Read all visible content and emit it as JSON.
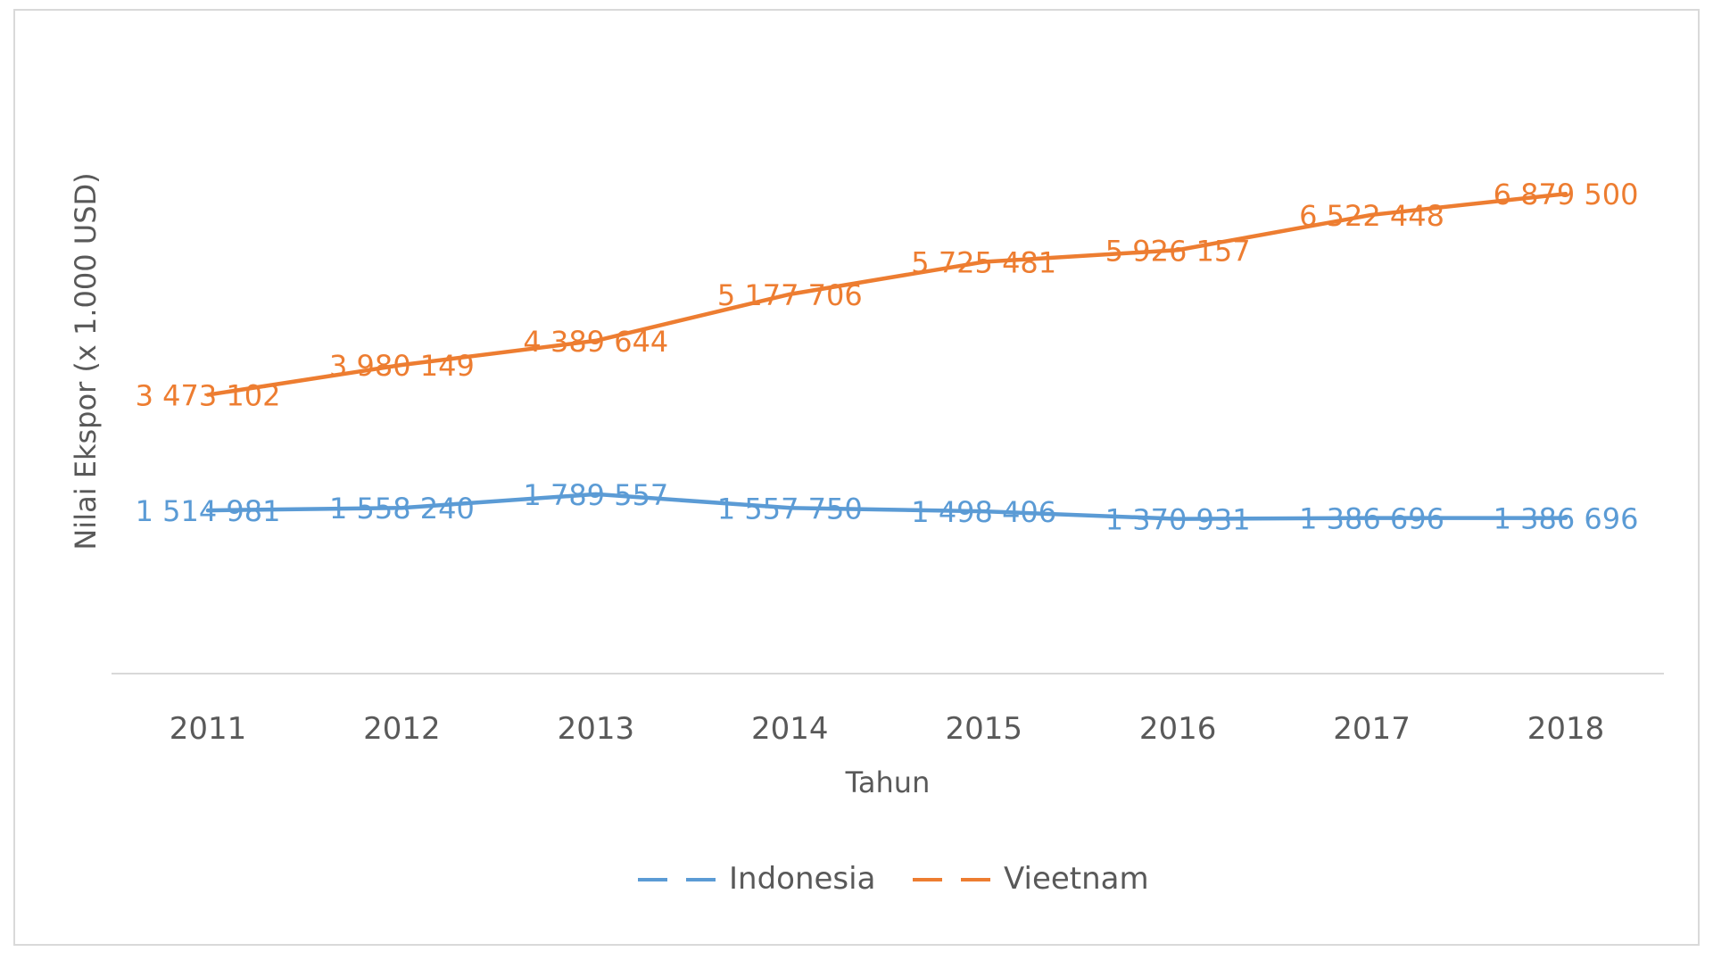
{
  "chart_data": {
    "type": "line",
    "title": "",
    "xlabel": "Tahun",
    "ylabel": "Nilai Ekspor (x 1.000 USD)",
    "categories": [
      "2011",
      "2012",
      "2013",
      "2014",
      "2015",
      "2016",
      "2017",
      "2018"
    ],
    "ylim": [
      -1250000,
      8500000
    ],
    "grid": false,
    "legend_position": "bottom",
    "series": [
      {
        "name": "Indonesia",
        "color": "#5b9bd5",
        "values": [
          1514981,
          1558240,
          1789557,
          1557750,
          1498406,
          1370931,
          1386696,
          1386696
        ],
        "labels": [
          "1 514 981",
          "1 558 240",
          "1 789 557",
          "1 557 750",
          "1 498 406",
          "1 370 931",
          "1 386 696",
          "1 386 696"
        ]
      },
      {
        "name": "Vieetnam",
        "color": "#ed7d31",
        "values": [
          3473102,
          3980149,
          4389644,
          5177706,
          5725481,
          5926157,
          6522448,
          6879500
        ],
        "labels": [
          "3 473 102",
          "3 980 149",
          "4 389 644",
          "5 177 706",
          "5 725 481",
          "5 926 157",
          "6 522 448",
          "6 879 500"
        ]
      }
    ]
  }
}
